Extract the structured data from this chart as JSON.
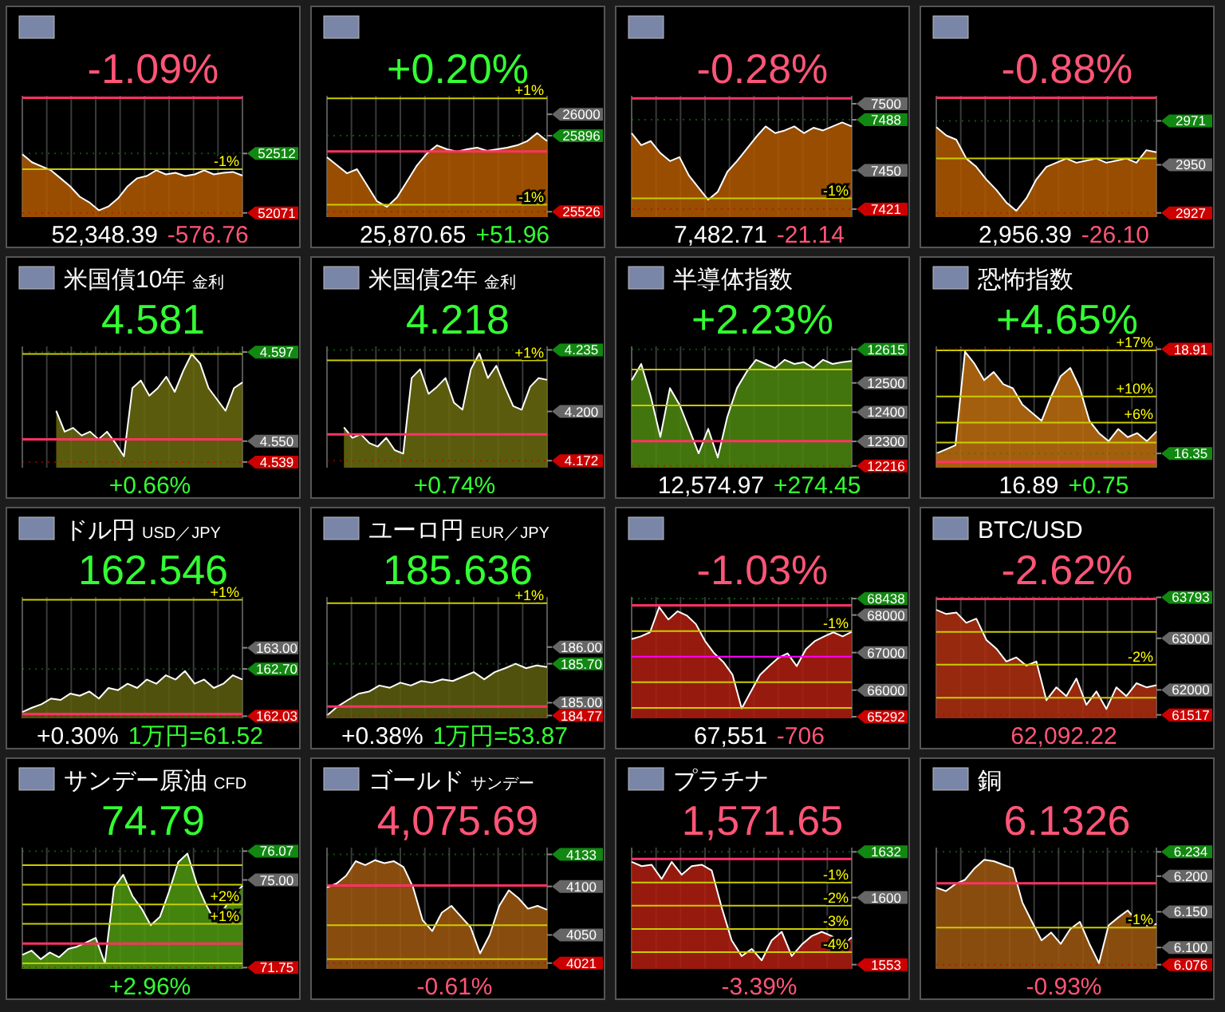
{
  "chart_data": [
    {
      "type": "area",
      "title": null,
      "annotations": [
        "-1.09%",
        "52,348.39",
        "-576.76",
        {
          "text": "-1%",
          "y": 52396
        }
      ],
      "grid": "x",
      "categories": [
        null,
        null,
        null,
        null,
        null,
        null,
        null,
        null,
        null,
        null,
        null,
        null,
        null,
        null,
        null,
        null,
        null,
        null,
        null,
        null,
        null,
        null,
        null,
        null
      ],
      "series": [
        {
          "color": "#b35a00",
          "values": [
            52506,
            52447,
            52417,
            52387,
            52328,
            52268,
            52191,
            52149,
            52090,
            52119,
            52179,
            52268,
            52328,
            52345,
            52387,
            52357,
            52369,
            52345,
            52357,
            52387,
            52357,
            52369,
            52375,
            52348
          ]
        }
      ],
      "ylim": [
        52040,
        52940
      ],
      "yticks": [
        {
          "value": 52512,
          "label": "52512"
        },
        {
          "value": 52071,
          "label": "52071"
        }
      ],
      "ref_lines": [
        {
          "axis": "y",
          "value": 52925,
          "color": "#ff3366",
          "line_style": "solid"
        },
        {
          "axis": "y",
          "value": 52396,
          "color": "#cccc00",
          "line_style": "solid"
        },
        {
          "axis": "y",
          "value": 52512,
          "color": "#118811",
          "line_style": "dotted"
        },
        {
          "axis": "y",
          "value": 52071,
          "color": "#cc0000",
          "line_style": "dotted"
        }
      ]
    },
    {
      "type": "area",
      "title": null,
      "annotations": [
        "+0.20%",
        "25,870.65",
        "+51.96",
        {
          "text": "+1%",
          "y": 26077
        },
        {
          "text": "-1%",
          "y": 25560
        }
      ],
      "grid": "x",
      "categories": [
        null,
        null,
        null,
        null,
        null,
        null,
        null,
        null,
        null,
        null,
        null,
        null,
        null,
        null,
        null,
        null,
        null,
        null,
        null,
        null,
        null,
        null,
        null
      ],
      "series": [
        {
          "color": "#b35a00",
          "values": [
            25791,
            25752,
            25713,
            25733,
            25655,
            25577,
            25550,
            25596,
            25674,
            25752,
            25810,
            25849,
            25830,
            25818,
            25830,
            25838,
            25822,
            25830,
            25838,
            25849,
            25869,
            25908,
            25870
          ]
        }
      ],
      "ylim": [
        25500,
        26090
      ],
      "yticks": [
        {
          "value": 26000,
          "label": "26000"
        },
        {
          "value": 25896,
          "label": "25896"
        },
        {
          "value": 25526,
          "label": "25526"
        }
      ],
      "ref_lines": [
        {
          "axis": "y",
          "value": 25819,
          "color": "#ff3366",
          "line_style": "solid"
        },
        {
          "axis": "y",
          "value": 26077,
          "color": "#cccc00",
          "line_style": "solid"
        },
        {
          "axis": "y",
          "value": 25560,
          "color": "#cccc00",
          "line_style": "solid"
        },
        {
          "axis": "y",
          "value": 25896,
          "color": "#118811",
          "line_style": "dotted"
        },
        {
          "axis": "y",
          "value": 25526,
          "color": "#cc0000",
          "line_style": "dotted"
        }
      ]
    },
    {
      "type": "area",
      "title": null,
      "annotations": [
        "-0.28%",
        "7,482.71",
        "-21.14",
        {
          "text": "-1%",
          "y": 7429
        }
      ],
      "grid": "x",
      "categories": [
        null,
        null,
        null,
        null,
        null,
        null,
        null,
        null,
        null,
        null,
        null,
        null,
        null,
        null,
        null,
        null,
        null,
        null,
        null,
        null,
        null,
        null,
        null,
        null
      ],
      "series": [
        {
          "color": "#b35a00",
          "values": [
            7478,
            7469,
            7472,
            7463,
            7457,
            7460,
            7446,
            7437,
            7428,
            7434,
            7449,
            7457,
            7466,
            7475,
            7483,
            7478,
            7480,
            7483,
            7478,
            7482,
            7480,
            7483,
            7486,
            7483
          ]
        }
      ],
      "ylim": [
        7415,
        7506
      ],
      "yticks": [
        {
          "value": 7500,
          "label": "7500"
        },
        {
          "value": 7488,
          "label": "7488"
        },
        {
          "value": 7450,
          "label": "7450"
        },
        {
          "value": 7421,
          "label": "7421"
        }
      ],
      "ref_lines": [
        {
          "axis": "y",
          "value": 7504,
          "color": "#ff3366",
          "line_style": "solid"
        },
        {
          "axis": "y",
          "value": 7429,
          "color": "#cccc00",
          "line_style": "solid"
        },
        {
          "axis": "y",
          "value": 7488,
          "color": "#118811",
          "line_style": "dotted"
        },
        {
          "axis": "y",
          "value": 7421,
          "color": "#cc0000",
          "line_style": "dotted"
        }
      ]
    },
    {
      "type": "area",
      "title": null,
      "annotations": [
        "-0.88%",
        "2,956.39",
        "-26.10"
      ],
      "grid": "x",
      "categories": [
        null,
        null,
        null,
        null,
        null,
        null,
        null,
        null,
        null,
        null,
        null,
        null,
        null,
        null,
        null,
        null,
        null,
        null,
        null,
        null,
        null,
        null,
        null
      ],
      "series": [
        {
          "color": "#b35a00",
          "values": [
            2968,
            2964,
            2962,
            2953,
            2949,
            2943,
            2938,
            2932,
            2928,
            2934,
            2943,
            2949,
            2951,
            2953,
            2951,
            2952,
            2953,
            2951,
            2952,
            2953,
            2951,
            2957,
            2956
          ]
        }
      ],
      "ylim": [
        2925,
        2983
      ],
      "yticks": [
        {
          "value": 2971,
          "label": "2971"
        },
        {
          "value": 2950,
          "label": "2950"
        },
        {
          "value": 2927,
          "label": "2927"
        }
      ],
      "ref_lines": [
        {
          "axis": "y",
          "value": 2982,
          "color": "#ff3366",
          "line_style": "solid"
        },
        {
          "axis": "y",
          "value": 2953,
          "color": "#cccc00",
          "line_style": "solid"
        },
        {
          "axis": "y",
          "value": 2971,
          "color": "#118811",
          "line_style": "dotted"
        },
        {
          "axis": "y",
          "value": 2927,
          "color": "#cc0000",
          "line_style": "dotted"
        }
      ]
    },
    {
      "type": "area",
      "title": "米国債10年",
      "subtitle": "金利",
      "annotations": [
        "4.581",
        "+0.66%"
      ],
      "grid": "x",
      "categories": [
        null,
        null,
        null,
        null,
        null,
        null,
        null,
        null,
        null,
        null,
        null,
        null,
        null,
        null,
        null,
        null,
        null,
        null,
        null,
        null,
        null,
        null,
        null,
        null,
        null,
        null,
        null
      ],
      "series": [
        {
          "color": "#6b6b10",
          "values": [
            null,
            null,
            null,
            null,
            4.566,
            4.555,
            4.557,
            4.553,
            4.555,
            4.551,
            4.555,
            4.549,
            4.542,
            4.578,
            4.582,
            4.574,
            4.578,
            4.584,
            4.576,
            4.587,
            4.596,
            4.591,
            4.578,
            4.572,
            4.566,
            4.578,
            4.581
          ]
        }
      ],
      "ylim": [
        4.536,
        4.6
      ],
      "yticks": [
        {
          "value": 4.597,
          "label": "4.597"
        },
        {
          "value": 4.55,
          "label": "4.550"
        },
        {
          "value": 4.539,
          "label": "4.539"
        }
      ],
      "ref_lines": [
        {
          "axis": "y",
          "value": 4.551,
          "color": "#ff3366",
          "line_style": "solid"
        },
        {
          "axis": "y",
          "value": 4.596,
          "color": "#cccc00",
          "line_style": "solid"
        },
        {
          "axis": "y",
          "value": 4.597,
          "color": "#118811",
          "line_style": "dotted"
        },
        {
          "axis": "y",
          "value": 4.539,
          "color": "#cc0000",
          "line_style": "dotted"
        }
      ]
    },
    {
      "type": "area",
      "title": "米国債2年",
      "subtitle": "金利",
      "annotations": [
        "4.218",
        "+0.74%",
        {
          "text": "+1%",
          "y": 4.229
        }
      ],
      "grid": "x",
      "categories": [
        null,
        null,
        null,
        null,
        null,
        null,
        null,
        null,
        null,
        null,
        null,
        null,
        null,
        null,
        null,
        null,
        null,
        null,
        null,
        null,
        null,
        null,
        null,
        null,
        null,
        null,
        null
      ],
      "series": [
        {
          "color": "#6b6b10",
          "values": [
            null,
            null,
            4.191,
            4.185,
            4.187,
            4.182,
            4.18,
            4.185,
            4.178,
            4.176,
            4.219,
            4.224,
            4.21,
            4.214,
            4.219,
            4.205,
            4.201,
            4.224,
            4.233,
            4.219,
            4.226,
            4.214,
            4.203,
            4.201,
            4.214,
            4.219,
            4.218
          ]
        }
      ],
      "ylim": [
        4.168,
        4.237
      ],
      "yticks": [
        {
          "value": 4.235,
          "label": "4.235"
        },
        {
          "value": 4.2,
          "label": "4.200"
        },
        {
          "value": 4.172,
          "label": "4.172"
        }
      ],
      "ref_lines": [
        {
          "axis": "y",
          "value": 4.187,
          "color": "#ff3366",
          "line_style": "solid"
        },
        {
          "axis": "y",
          "value": 4.229,
          "color": "#cccc00",
          "line_style": "solid"
        },
        {
          "axis": "y",
          "value": 4.235,
          "color": "#118811",
          "line_style": "dotted"
        },
        {
          "axis": "y",
          "value": 4.172,
          "color": "#cc0000",
          "line_style": "dotted"
        }
      ]
    },
    {
      "type": "area",
      "title": "半導体指数",
      "annotations": [
        "+2.23%",
        "12,574.97",
        "+274.45"
      ],
      "grid": "x",
      "categories": [
        null,
        null,
        null,
        null,
        null,
        null,
        null,
        null,
        null,
        null,
        null,
        null,
        null,
        null,
        null,
        null,
        null,
        null,
        null,
        null,
        null,
        null,
        null,
        null
      ],
      "series": [
        {
          "color": "#4f8a10",
          "values": [
            12509,
            12565,
            12454,
            12315,
            12482,
            12426,
            12343,
            12259,
            12343,
            12245,
            12384,
            12482,
            12537,
            12579,
            12565,
            12551,
            12579,
            12565,
            12571,
            12551,
            12579,
            12565,
            12571,
            12575
          ]
        }
      ],
      "ylim": [
        12210,
        12625
      ],
      "yticks": [
        {
          "value": 12615,
          "label": "12615"
        },
        {
          "value": 12500,
          "label": "12500"
        },
        {
          "value": 12400,
          "label": "12400"
        },
        {
          "value": 12300,
          "label": "12300"
        },
        {
          "value": 12216,
          "label": "12216"
        }
      ],
      "ref_lines": [
        {
          "axis": "y",
          "value": 12301,
          "color": "#ff3366",
          "line_style": "solid"
        },
        {
          "axis": "y",
          "value": 12546,
          "color": "#cccc00",
          "line_style": "solid"
        },
        {
          "axis": "y",
          "value": 12423,
          "color": "#cccc00",
          "line_style": "solid"
        },
        {
          "axis": "y",
          "value": 12615,
          "color": "#118811",
          "line_style": "dotted"
        },
        {
          "axis": "y",
          "value": 12216,
          "color": "#cc0000",
          "line_style": "dotted"
        }
      ]
    },
    {
      "type": "area",
      "title": "恐怖指数",
      "annotations": [
        "+4.65%",
        "16.89",
        "+0.75",
        {
          "text": "+17%",
          "y": 18.88
        },
        {
          "text": "+10%",
          "y": 17.75
        },
        {
          "text": "+6%",
          "y": 17.11
        }
      ],
      "grid": "x",
      "categories": [
        null,
        null,
        null,
        null,
        null,
        null,
        null,
        null,
        null,
        null,
        null,
        null,
        null,
        null,
        null,
        null,
        null,
        null,
        null,
        null,
        null,
        null,
        null,
        null
      ],
      "series": [
        {
          "color": "#c07010",
          "values": [
            16.35,
            16.45,
            16.55,
            18.85,
            18.55,
            18.15,
            18.35,
            18.05,
            17.95,
            17.55,
            17.35,
            17.15,
            17.75,
            18.25,
            18.45,
            17.95,
            17.15,
            16.85,
            16.65,
            16.95,
            16.75,
            16.85,
            16.65,
            16.89
          ]
        }
      ],
      "ylim": [
        16.0,
        18.98
      ],
      "yticks": [
        {
          "value": 18.91,
          "label": "18.91"
        },
        {
          "value": 16.35,
          "label": "16.35"
        }
      ],
      "ref_lines": [
        {
          "axis": "y",
          "value": 16.14,
          "color": "#ff3366",
          "line_style": "solid"
        },
        {
          "axis": "y",
          "value": 18.88,
          "color": "#cccc00",
          "line_style": "solid"
        },
        {
          "axis": "y",
          "value": 17.75,
          "color": "#cccc00",
          "line_style": "solid"
        },
        {
          "axis": "y",
          "value": 17.11,
          "color": "#cccc00",
          "line_style": "solid"
        },
        {
          "axis": "y",
          "value": 16.62,
          "color": "#cccc00",
          "line_style": "solid"
        },
        {
          "axis": "y",
          "value": 18.91,
          "color": "#cc0000",
          "line_style": "dotted"
        },
        {
          "axis": "y",
          "value": 16.35,
          "color": "#118811",
          "line_style": "dotted"
        }
      ]
    },
    {
      "type": "area",
      "title": "ドル円",
      "subtitle": "USD／JPY",
      "annotations": [
        "162.546",
        "+0.30%",
        "1万円=61.52",
        {
          "text": "+1%",
          "y": 163.68
        }
      ],
      "grid": "x",
      "categories": [
        null,
        null,
        null,
        null,
        null,
        null,
        null,
        null,
        null,
        null,
        null,
        null,
        null,
        null,
        null,
        null,
        null,
        null,
        null,
        null,
        null,
        null,
        null,
        null
      ],
      "series": [
        {
          "color": "#5f5f10",
          "values": [
            162.09,
            162.15,
            162.2,
            162.28,
            162.26,
            162.35,
            162.32,
            162.38,
            162.28,
            162.43,
            162.4,
            162.49,
            162.43,
            162.55,
            162.49,
            162.61,
            162.55,
            162.67,
            162.49,
            162.55,
            162.43,
            162.49,
            162.61,
            162.55
          ]
        }
      ],
      "ylim": [
        162.0,
        163.72
      ],
      "yticks": [
        {
          "value": 163,
          "label": "163.00"
        },
        {
          "value": 162.7,
          "label": "162.70"
        },
        {
          "value": 162.03,
          "label": "162.03"
        }
      ],
      "ref_lines": [
        {
          "axis": "y",
          "value": 162.06,
          "color": "#ff3366",
          "line_style": "solid"
        },
        {
          "axis": "y",
          "value": 163.68,
          "color": "#cccc00",
          "line_style": "solid"
        },
        {
          "axis": "y",
          "value": 162.7,
          "color": "#118811",
          "line_style": "dotted"
        },
        {
          "axis": "y",
          "value": 162.03,
          "color": "#cc0000",
          "line_style": "dotted"
        }
      ]
    },
    {
      "type": "area",
      "title": "ユーロ円",
      "subtitle": "EUR／JPY",
      "annotations": [
        "185.636",
        "+0.38%",
        "1万円=53.87",
        {
          "text": "+1%",
          "y": 186.79
        }
      ],
      "grid": "x",
      "categories": [
        null,
        null,
        null,
        null,
        null,
        null,
        null,
        null,
        null,
        null,
        null,
        null,
        null,
        null,
        null,
        null,
        null,
        null,
        null,
        null,
        null,
        null
      ],
      "series": [
        {
          "color": "#5f5f10",
          "values": [
            184.77,
            184.93,
            185.05,
            185.16,
            185.2,
            185.31,
            185.27,
            185.36,
            185.31,
            185.39,
            185.36,
            185.42,
            185.39,
            185.47,
            185.55,
            185.42,
            185.55,
            185.62,
            185.7,
            185.62,
            185.67,
            185.64
          ]
        }
      ],
      "ylim": [
        184.72,
        186.9
      ],
      "yticks": [
        {
          "value": 186,
          "label": "186.00"
        },
        {
          "value": 185.7,
          "label": "185.70"
        },
        {
          "value": 185,
          "label": "185.00"
        },
        {
          "value": 184.77,
          "label": "184.77"
        }
      ],
      "ref_lines": [
        {
          "axis": "y",
          "value": 184.93,
          "color": "#ff3366",
          "line_style": "solid"
        },
        {
          "axis": "y",
          "value": 186.79,
          "color": "#cccc00",
          "line_style": "solid"
        },
        {
          "axis": "y",
          "value": 185.7,
          "color": "#118811",
          "line_style": "dotted"
        },
        {
          "axis": "y",
          "value": 184.77,
          "color": "#cc0000",
          "line_style": "dotted"
        }
      ]
    },
    {
      "type": "area",
      "title": null,
      "annotations": [
        "-1.03%",
        "67,551",
        "-706",
        {
          "text": "-1%",
          "y": 67574
        }
      ],
      "grid": "x",
      "categories": [
        null,
        null,
        null,
        null,
        null,
        null,
        null,
        null,
        null,
        null,
        null,
        null,
        null,
        null,
        null,
        null,
        null,
        null,
        null,
        null,
        null,
        null,
        null,
        null,
        null
      ],
      "series": [
        {
          "color": "#b02010",
          "values": [
            67360,
            67430,
            67540,
            68210,
            67880,
            68100,
            67990,
            67760,
            67310,
            66980,
            66750,
            66410,
            65510,
            65960,
            66410,
            66640,
            66860,
            66980,
            66640,
            67090,
            67310,
            67430,
            67540,
            67430,
            67551
          ]
        }
      ],
      "ylim": [
        65250,
        68480
      ],
      "yticks": [
        {
          "value": 68438,
          "label": "68438"
        },
        {
          "value": 68000,
          "label": "68000"
        },
        {
          "value": 67000,
          "label": "67000"
        },
        {
          "value": 66000,
          "label": "66000"
        },
        {
          "value": 65292,
          "label": "65292"
        }
      ],
      "ref_lines": [
        {
          "axis": "y",
          "value": 68257,
          "color": "#ff3366",
          "line_style": "solid"
        },
        {
          "axis": "y",
          "value": 67574,
          "color": "#cccc00",
          "line_style": "solid"
        },
        {
          "axis": "y",
          "value": 66892,
          "color": "#ff00ff",
          "line_style": "solid"
        },
        {
          "axis": "y",
          "value": 66209,
          "color": "#cccc00",
          "line_style": "solid"
        },
        {
          "axis": "y",
          "value": 65527,
          "color": "#cccc00",
          "line_style": "solid"
        },
        {
          "axis": "y",
          "value": 68438,
          "color": "#118811",
          "line_style": "dotted"
        },
        {
          "axis": "y",
          "value": 65292,
          "color": "#cc0000",
          "line_style": "dotted"
        }
      ]
    },
    {
      "type": "area",
      "title": "BTC/USD",
      "annotations": [
        "-2.62%",
        "62,092.22",
        {
          "text": "-2%",
          "y": 62488
        }
      ],
      "grid": "x",
      "categories": [
        null,
        null,
        null,
        null,
        null,
        null,
        null,
        null,
        null,
        null,
        null,
        null,
        null,
        null,
        null,
        null,
        null,
        null,
        null,
        null,
        null,
        null,
        null
      ],
      "series": [
        {
          "color": "#b03010",
          "values": [
            63550,
            63470,
            63500,
            63300,
            63380,
            62970,
            62800,
            62550,
            62630,
            62470,
            62550,
            61800,
            62050,
            61880,
            62220,
            61710,
            61970,
            61630,
            62050,
            61880,
            62130,
            62050,
            62092
          ]
        }
      ],
      "ylim": [
        61450,
        63800
      ],
      "yticks": [
        {
          "value": 63793,
          "label": "63793"
        },
        {
          "value": 63000,
          "label": "63000"
        },
        {
          "value": 62000,
          "label": "62000"
        },
        {
          "value": 61517,
          "label": "61517"
        }
      ],
      "ref_lines": [
        {
          "axis": "y",
          "value": 63763,
          "color": "#ff3366",
          "line_style": "solid"
        },
        {
          "axis": "y",
          "value": 63125,
          "color": "#cccc00",
          "line_style": "solid"
        },
        {
          "axis": "y",
          "value": 62488,
          "color": "#cccc00",
          "line_style": "solid"
        },
        {
          "axis": "y",
          "value": 61850,
          "color": "#cccc00",
          "line_style": "solid"
        },
        {
          "axis": "y",
          "value": 63793,
          "color": "#118811",
          "line_style": "dotted"
        },
        {
          "axis": "y",
          "value": 61517,
          "color": "#cc0000",
          "line_style": "dotted"
        }
      ]
    },
    {
      "type": "area",
      "title": "サンデー原油",
      "subtitle": "CFD",
      "annotations": [
        "74.79",
        "+2.96%",
        {
          "text": "+2%",
          "y": 74.09
        },
        {
          "text": "+1%",
          "y": 73.37
        }
      ],
      "grid": "x",
      "categories": [
        null,
        null,
        null,
        null,
        null,
        null,
        null,
        null,
        null,
        null,
        null,
        null,
        null,
        null,
        null,
        null,
        null,
        null,
        null,
        null,
        null,
        null,
        null,
        null,
        null
      ],
      "series": [
        {
          "color": "#4f9a10",
          "values": [
            72.22,
            72.38,
            72.06,
            72.31,
            72.13,
            72.44,
            72.53,
            72.69,
            72.85,
            71.91,
            74.72,
            75.19,
            74.41,
            73.94,
            73.32,
            73.63,
            74.57,
            75.66,
            75.98,
            74.88,
            74.1,
            73.47,
            73.94,
            74.41,
            74.79
          ]
        }
      ],
      "ylim": [
        71.7,
        76.2
      ],
      "yticks": [
        {
          "value": 76.07,
          "label": "76.07"
        },
        {
          "value": 75,
          "label": "75.00"
        },
        {
          "value": 71.75,
          "label": "71.75"
        }
      ],
      "ref_lines": [
        {
          "axis": "y",
          "value": 72.64,
          "color": "#ff3366",
          "line_style": "solid"
        },
        {
          "axis": "y",
          "value": 75.55,
          "color": "#cccc00",
          "line_style": "solid"
        },
        {
          "axis": "y",
          "value": 74.82,
          "color": "#cccc00",
          "line_style": "solid"
        },
        {
          "axis": "y",
          "value": 74.09,
          "color": "#cccc00",
          "line_style": "solid"
        },
        {
          "axis": "y",
          "value": 73.37,
          "color": "#cccc00",
          "line_style": "solid"
        },
        {
          "axis": "y",
          "value": 71.91,
          "color": "#cccc00",
          "line_style": "solid"
        },
        {
          "axis": "y",
          "value": 76.07,
          "color": "#118811",
          "line_style": "dotted"
        },
        {
          "axis": "y",
          "value": 71.75,
          "color": "#cc0000",
          "line_style": "dotted"
        }
      ]
    },
    {
      "type": "area",
      "title": "ゴールド",
      "subtitle": "サンデー",
      "annotations": [
        "4,075.69",
        "-0.61%"
      ],
      "grid": "x",
      "categories": [
        null,
        null,
        null,
        null,
        null,
        null,
        null,
        null,
        null,
        null,
        null,
        null,
        null,
        null,
        null,
        null,
        null,
        null,
        null,
        null,
        null,
        null,
        null,
        null
      ],
      "series": [
        {
          "color": "#a05a10",
          "values": [
            4099,
            4103,
            4111,
            4126,
            4122,
            4127,
            4124,
            4126,
            4120,
            4099,
            4065,
            4054,
            4073,
            4080,
            4069,
            4058,
            4031,
            4050,
            4080,
            4096,
            4088,
            4077,
            4080,
            4076
          ]
        }
      ],
      "ylim": [
        4015,
        4140
      ],
      "yticks": [
        {
          "value": 4133,
          "label": "4133"
        },
        {
          "value": 4100,
          "label": "4100"
        },
        {
          "value": 4050,
          "label": "4050"
        },
        {
          "value": 4021,
          "label": "4021"
        }
      ],
      "ref_lines": [
        {
          "axis": "y",
          "value": 4101,
          "color": "#ff3366",
          "line_style": "solid"
        },
        {
          "axis": "y",
          "value": 4060,
          "color": "#cccc00",
          "line_style": "solid"
        },
        {
          "axis": "y",
          "value": 4025,
          "color": "#cccc00",
          "line_style": "solid"
        },
        {
          "axis": "y",
          "value": 4133,
          "color": "#118811",
          "line_style": "dotted"
        },
        {
          "axis": "y",
          "value": 4021,
          "color": "#cc0000",
          "line_style": "dotted"
        }
      ]
    },
    {
      "type": "area",
      "title": "プラチナ",
      "annotations": [
        "1,571.65",
        "-3.39%",
        {
          "text": "-1%",
          "y": 1610.5
        },
        {
          "text": "-2%",
          "y": 1594.3
        },
        {
          "text": "-3%",
          "y": 1578
        },
        {
          "text": "-4%",
          "y": 1561.7
        }
      ],
      "grid": "x",
      "categories": [
        null,
        null,
        null,
        null,
        null,
        null,
        null,
        null,
        null,
        null,
        null,
        null,
        null,
        null,
        null,
        null,
        null,
        null,
        null,
        null,
        null,
        null,
        null
      ],
      "series": [
        {
          "color": "#b02010",
          "values": [
            1625,
            1622,
            1623,
            1613,
            1625,
            1616,
            1622,
            1623,
            1619,
            1593,
            1570,
            1559,
            1564,
            1556,
            1570,
            1576,
            1559,
            1567,
            1573,
            1576,
            1573,
            1567,
            1572
          ]
        }
      ],
      "ylim": [
        1550,
        1635
      ],
      "yticks": [
        {
          "value": 1632,
          "label": "1632"
        },
        {
          "value": 1600,
          "label": "1600"
        },
        {
          "value": 1553,
          "label": "1553"
        }
      ],
      "ref_lines": [
        {
          "axis": "y",
          "value": 1627,
          "color": "#ff3366",
          "line_style": "solid"
        },
        {
          "axis": "y",
          "value": 1610.5,
          "color": "#cccc00",
          "line_style": "solid"
        },
        {
          "axis": "y",
          "value": 1594.3,
          "color": "#cccc00",
          "line_style": "solid"
        },
        {
          "axis": "y",
          "value": 1578,
          "color": "#cccc00",
          "line_style": "solid"
        },
        {
          "axis": "y",
          "value": 1561.7,
          "color": "#cccc00",
          "line_style": "solid"
        },
        {
          "axis": "y",
          "value": 1632,
          "color": "#118811",
          "line_style": "dotted"
        },
        {
          "axis": "y",
          "value": 1553,
          "color": "#cc0000",
          "line_style": "dotted"
        }
      ]
    },
    {
      "type": "area",
      "title": "銅",
      "annotations": [
        "6.1326",
        "-0.93%",
        {
          "text": "-1%",
          "y": 6.128
        }
      ],
      "grid": "x",
      "categories": [
        null,
        null,
        null,
        null,
        null,
        null,
        null,
        null,
        null,
        null,
        null,
        null,
        null,
        null,
        null,
        null,
        null,
        null,
        null,
        null,
        null,
        null,
        null,
        null
      ],
      "series": [
        {
          "color": "#a05a10",
          "values": [
            6.184,
            6.179,
            6.189,
            6.195,
            6.211,
            6.223,
            6.221,
            6.216,
            6.211,
            6.163,
            6.136,
            6.11,
            6.121,
            6.105,
            6.126,
            6.136,
            6.105,
            6.078,
            6.131,
            6.142,
            6.152,
            6.136,
            6.131,
            6.133
          ]
        }
      ],
      "ylim": [
        6.07,
        6.24
      ],
      "yticks": [
        {
          "value": 6.234,
          "label": "6.234"
        },
        {
          "value": 6.2,
          "label": "6.200"
        },
        {
          "value": 6.15,
          "label": "6.150"
        },
        {
          "value": 6.1,
          "label": "6.100"
        },
        {
          "value": 6.076,
          "label": "6.076"
        }
      ],
      "ref_lines": [
        {
          "axis": "y",
          "value": 6.19,
          "color": "#ff3366",
          "line_style": "solid"
        },
        {
          "axis": "y",
          "value": 6.128,
          "color": "#cccc00",
          "line_style": "solid"
        },
        {
          "axis": "y",
          "value": 6.234,
          "color": "#118811",
          "line_style": "dotted"
        },
        {
          "axis": "y",
          "value": 6.076,
          "color": "#cc0000",
          "line_style": "dotted"
        }
      ]
    }
  ]
}
